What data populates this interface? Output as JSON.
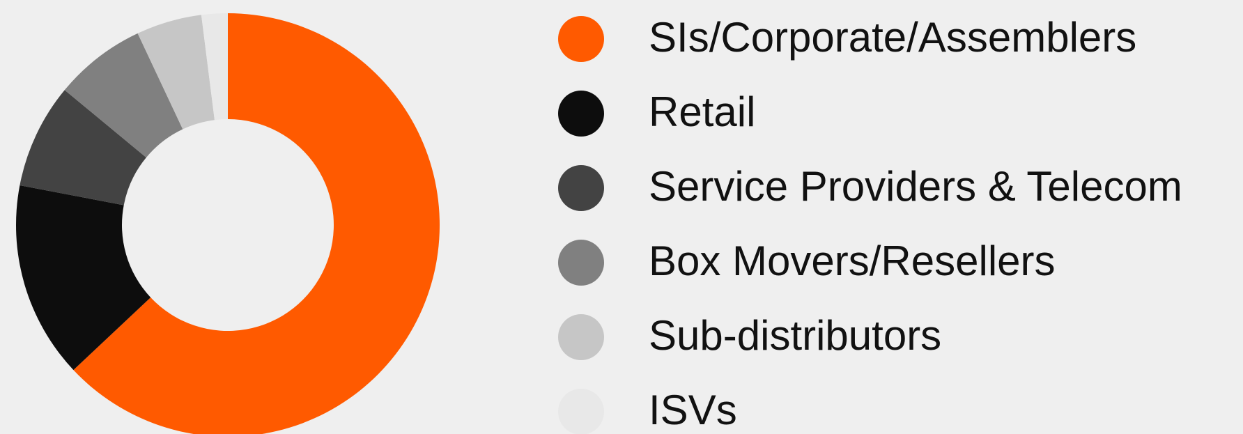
{
  "chart_data": {
    "type": "donut",
    "categories": [
      "SIs/Corporate/Assemblers",
      "Retail",
      "Service Providers & Telecom",
      "Box Movers/Resellers",
      "Sub-distributors",
      "ISVs"
    ],
    "values": [
      63,
      15,
      8,
      7,
      5,
      2
    ],
    "colors": [
      "#ff5a00",
      "#0d0d0d",
      "#434343",
      "#808080",
      "#c6c6c6",
      "#e8e8e8"
    ],
    "legend": "right"
  }
}
